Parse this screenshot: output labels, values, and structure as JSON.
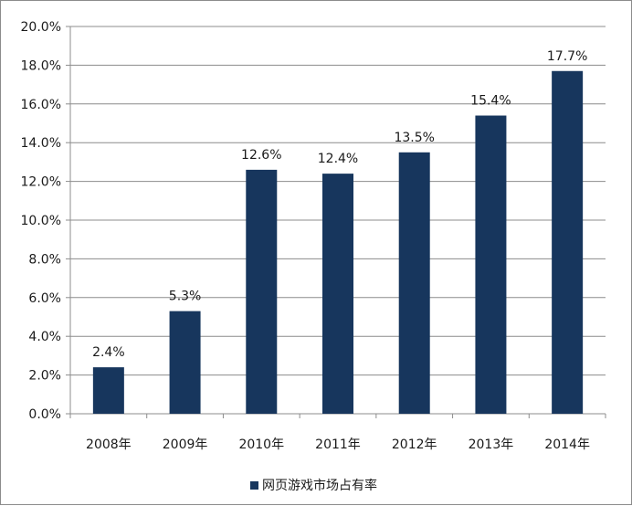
{
  "chart_data": {
    "type": "bar",
    "categories": [
      "2008年",
      "2009年",
      "2010年",
      "2011年",
      "2012年",
      "2013年",
      "2014年"
    ],
    "series": [
      {
        "name": "网页游戏市场占有率",
        "values": [
          2.4,
          5.3,
          12.6,
          12.4,
          13.5,
          15.4,
          17.7
        ],
        "data_labels": [
          "2.4%",
          "5.3%",
          "12.6%",
          "12.4%",
          "13.5%",
          "15.4%",
          "17.7%"
        ],
        "color": "#17365d"
      }
    ],
    "y_ticks": [
      "0.0%",
      "2.0%",
      "4.0%",
      "6.0%",
      "8.0%",
      "10.0%",
      "12.0%",
      "14.0%",
      "16.0%",
      "18.0%",
      "20.0%"
    ],
    "ylim": [
      0,
      20
    ],
    "grid": true,
    "legend_position": "bottom",
    "title": "",
    "xlabel": "",
    "ylabel": ""
  }
}
